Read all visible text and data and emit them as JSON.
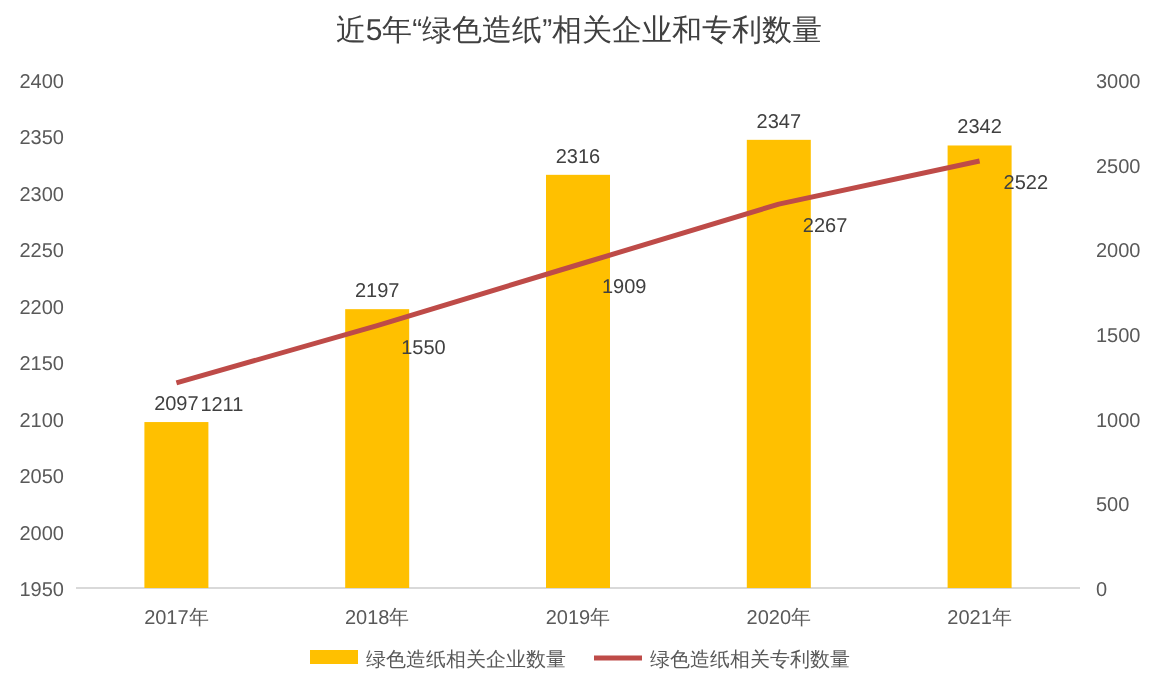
{
  "chart_data": {
    "type": "bar",
    "title": "近5年“绿色造纸”相关企业和专利数量",
    "categories": [
      "2017年",
      "2018年",
      "2019年",
      "2020年",
      "2021年"
    ],
    "series": [
      {
        "name": "绿色造纸相关企业数量",
        "color": "#ffc000",
        "values": [
          2097,
          2197,
          2316,
          2347,
          2342
        ]
      },
      {
        "name": "绿色造纸相关专利数量",
        "type": "line",
        "axis": "y2",
        "color": "#be4b48",
        "values": [
          1211,
          1550,
          1909,
          2267,
          2522
        ]
      }
    ],
    "ylim": [
      1950,
      2400
    ],
    "yticks": [
      1950,
      2000,
      2050,
      2100,
      2150,
      2200,
      2250,
      2300,
      2350,
      2400
    ],
    "y2lim": [
      0,
      3000
    ],
    "y2ticks": [
      0,
      500,
      1000,
      1500,
      2000,
      2500,
      3000
    ],
    "data_labels": true,
    "legend": "bottom"
  }
}
